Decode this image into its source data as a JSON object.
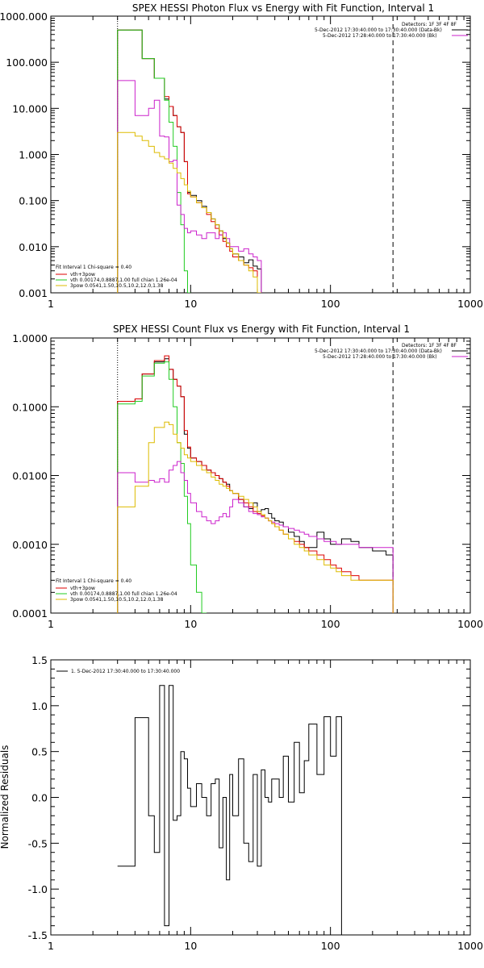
{
  "chart_data": [
    {
      "type": "line",
      "title": "SPEX HESSI Photon Flux vs Energy with Fit Function, Interval 1",
      "xscale": "log",
      "yscale": "log",
      "xlim": [
        1,
        1000
      ],
      "ylim": [
        0.001,
        1000
      ],
      "x_ticks": [
        "1",
        "10",
        "100",
        "1000"
      ],
      "y_ticks": [
        "0.001",
        "0.010",
        "0.100",
        "1.000",
        "10.000",
        "100.000",
        "1000.000"
      ],
      "energy_edges": [
        3.0,
        3.5,
        4.0,
        4.5,
        5.0,
        5.5,
        6.0,
        6.5,
        7.0,
        7.5,
        8.0,
        8.5,
        9.0,
        9.5,
        10.0,
        11.0,
        12.0,
        13.0,
        14.0,
        15.0,
        16.0,
        17.0,
        18.0,
        19.0,
        20.0,
        22.0,
        24.0,
        26.0,
        28.0,
        30.0,
        32.0,
        34.0,
        36.0,
        38.0,
        40.0,
        43.0,
        46.0,
        50.0,
        55.0,
        60.0,
        65.0,
        70.0,
        80.0,
        90.0,
        100.0,
        110.0,
        120.0,
        140.0,
        160.0,
        180.0,
        200.0,
        250.0,
        280.0
      ],
      "vline_dotted_x": 3.0,
      "vline_dashed_x": 280,
      "header": {
        "detectors": "Detectors: 1F 3F 4F 8F",
        "line1": "5-Dec-2012 17:30:40.000 to 17:30:40.000 (Data-Bk)",
        "line2": "5-Dec-2012 17:28:40.000 to 17:30:40.000 (Bk)"
      },
      "legend": {
        "line1": "Fit Interval 1   Chi-square = 0.40",
        "items": [
          "vth+3pow",
          "vth 0.00174,0.8887,1.00  full chian 1.26e-04",
          "3pow 0.0541,1.50,10.5,10.2,12.0,1.38"
        ]
      },
      "series": [
        {
          "key": "data",
          "color": "#000000",
          "values": [
            500,
            500,
            500,
            120,
            120,
            45,
            45,
            16,
            11,
            7,
            4,
            3,
            0.7,
            0.15,
            0.13,
            0.1,
            0.075,
            0.055,
            0.04,
            0.03,
            0.022,
            0.015,
            0.012,
            0.009,
            0.007,
            0.006,
            0.0045,
            0.0052,
            0.0038,
            0.0033
          ]
        },
        {
          "key": "total",
          "color": "#dd0000",
          "values": [
            500,
            500,
            500,
            120,
            120,
            45,
            45,
            18,
            11,
            7,
            4,
            3,
            0.7,
            0.14,
            0.12,
            0.09,
            0.07,
            0.05,
            0.035,
            0.025,
            0.018,
            0.013,
            0.01,
            0.008,
            0.006,
            0.005,
            0.004,
            0.0035,
            0.003
          ]
        },
        {
          "key": "thermal",
          "color": "#22cc22",
          "values": [
            500,
            500,
            500,
            120,
            120,
            45,
            45,
            15,
            5,
            1.5,
            0.15,
            0.03,
            0.003,
            0.001
          ]
        },
        {
          "key": "bk",
          "color": "#cc22cc",
          "values": [
            40,
            40,
            7,
            7,
            10,
            15,
            2.5,
            2.4,
            0.7,
            0.75,
            0.08,
            0.05,
            0.025,
            0.02,
            0.022,
            0.018,
            0.015,
            0.02,
            0.02,
            0.015,
            0.018,
            0.02,
            0.015,
            0.01,
            0.01,
            0.008,
            0.009,
            0.007,
            0.006,
            0.005
          ]
        },
        {
          "key": "nonthermal",
          "color": "#ddbb00",
          "values": [
            3,
            3,
            2.5,
            2,
            1.5,
            1.1,
            0.9,
            0.8,
            0.65,
            0.5,
            0.4,
            0.3,
            0.22,
            0.16,
            0.12,
            0.09,
            0.07,
            0.055,
            0.04,
            0.03,
            0.022,
            0.016,
            0.012,
            0.009,
            0.007,
            0.005,
            0.004,
            0.003,
            0.0022,
            0.001
          ]
        }
      ]
    },
    {
      "type": "line",
      "title": "SPEX HESSI Count Flux vs Energy with Fit Function, Interval 1",
      "xscale": "log",
      "yscale": "log",
      "xlim": [
        1,
        1000
      ],
      "ylim": [
        0.0001,
        1
      ],
      "x_ticks": [
        "1",
        "10",
        "100",
        "1000"
      ],
      "y_ticks": [
        "0.0001",
        "0.0010",
        "0.0100",
        "0.1000",
        "1.0000"
      ],
      "vline_dotted_x": 3.0,
      "vline_dashed_x": 280,
      "header": {
        "detectors": "Detectors: 1F 3F 4F 8F",
        "line1": "5-Dec-2012 17:30:40.000 to 17:30:40.000 (Data-Bk)",
        "line2": "5-Dec-2012 17:28:40.000 to 17:30:40.000 (Bk)"
      },
      "legend": {
        "line1": "Fit Interval 1   Chi-square = 0.40",
        "items": [
          "vth+3pow",
          "vth 0.00174,0.8887,1.00  full chian 1.26e-04",
          "3pow 0.0541,1.50,10.5,10.2,12.0,1.38"
        ]
      },
      "series": [
        {
          "key": "data",
          "color": "#000000",
          "values": [
            0.12,
            0.12,
            0.13,
            0.3,
            0.3,
            0.45,
            0.45,
            0.5,
            0.35,
            0.25,
            0.2,
            0.14,
            0.04,
            0.025,
            0.018,
            0.016,
            0.014,
            0.012,
            0.011,
            0.01,
            0.009,
            0.008,
            0.0075,
            0.006,
            0.0055,
            0.0045,
            0.0035,
            0.0033,
            0.004,
            0.003,
            0.0032,
            0.0033,
            0.0028,
            0.0024,
            0.0022,
            0.0021,
            0.0018,
            0.0015,
            0.0013,
            0.0011,
            0.0009,
            0.0009,
            0.0015,
            0.0012,
            0.001,
            0.001,
            0.0012,
            0.0011,
            0.0009,
            0.0009,
            0.0008,
            0.0007
          ]
        },
        {
          "key": "total",
          "color": "#dd0000",
          "values": [
            0.12,
            0.12,
            0.13,
            0.3,
            0.3,
            0.47,
            0.47,
            0.55,
            0.35,
            0.25,
            0.2,
            0.14,
            0.045,
            0.026,
            0.018,
            0.016,
            0.014,
            0.012,
            0.011,
            0.01,
            0.009,
            0.008,
            0.007,
            0.006,
            0.0055,
            0.0045,
            0.004,
            0.0035,
            0.003,
            0.0028,
            0.0026,
            0.0024,
            0.0022,
            0.002,
            0.0018,
            0.0016,
            0.0014,
            0.0012,
            0.0011,
            0.001,
            0.0009,
            0.0008,
            0.0007,
            0.0006,
            0.0005,
            0.00045,
            0.0004,
            0.00035,
            0.0003,
            0.0003,
            0.0003,
            0.0003
          ]
        },
        {
          "key": "thermal",
          "color": "#22cc22",
          "values": [
            0.11,
            0.11,
            0.12,
            0.28,
            0.28,
            0.43,
            0.43,
            0.45,
            0.25,
            0.1,
            0.03,
            0.015,
            0.005,
            0.002,
            0.0005,
            0.0002,
            0.0001
          ]
        },
        {
          "key": "bk",
          "color": "#cc22cc",
          "values": [
            0.011,
            0.011,
            0.008,
            0.008,
            0.0085,
            0.008,
            0.009,
            0.008,
            0.012,
            0.014,
            0.016,
            0.011,
            0.0085,
            0.0055,
            0.004,
            0.003,
            0.0025,
            0.0022,
            0.002,
            0.0022,
            0.0025,
            0.0028,
            0.0025,
            0.0035,
            0.0045,
            0.004,
            0.0035,
            0.003,
            0.0028,
            0.0027,
            0.0025,
            0.0024,
            0.0022,
            0.0021,
            0.002,
            0.0019,
            0.0018,
            0.0017,
            0.0016,
            0.0015,
            0.0014,
            0.0013,
            0.0012,
            0.0011,
            0.0011,
            0.001,
            0.001,
            0.001,
            0.0009,
            0.0009,
            0.0009,
            0.0009
          ]
        },
        {
          "key": "nonthermal",
          "color": "#ddbb00",
          "values": [
            0.0035,
            0.0035,
            0.007,
            0.007,
            0.03,
            0.05,
            0.05,
            0.06,
            0.055,
            0.04,
            0.03,
            0.025,
            0.02,
            0.018,
            0.016,
            0.014,
            0.012,
            0.011,
            0.0095,
            0.0085,
            0.0075,
            0.007,
            0.0065,
            0.006,
            0.0055,
            0.005,
            0.0045,
            0.004,
            0.0035,
            0.003,
            0.0027,
            0.0024,
            0.0022,
            0.002,
            0.0018,
            0.0016,
            0.0014,
            0.0012,
            0.001,
            0.0009,
            0.0008,
            0.0007,
            0.0006,
            0.0005,
            0.00045,
            0.0004,
            0.00035,
            0.0003,
            0.0003,
            0.0003,
            0.0003,
            0.0003
          ]
        }
      ]
    },
    {
      "type": "line",
      "title": "",
      "ylabel": "Normalized Residuals",
      "xscale": "log",
      "xlim": [
        1,
        1000
      ],
      "ylim": [
        -1.5,
        1.5
      ],
      "x_ticks": [
        "1",
        "10",
        "100",
        "1000"
      ],
      "y_ticks": [
        "-1.5",
        "-1.0",
        "-0.5",
        "0.0",
        "0.5",
        "1.0",
        "1.5"
      ],
      "legend": {
        "items": [
          "1.  5-Dec-2012 17:30:40.000 to 17:30:40.000"
        ]
      },
      "series": [
        {
          "key": "residuals",
          "color": "#000000",
          "values": [
            -0.75,
            -0.75,
            0.87,
            0.87,
            -0.2,
            -0.6,
            1.22,
            -1.4,
            1.22,
            -0.25,
            -0.2,
            0.5,
            0.42,
            0.1,
            -0.1,
            0.15,
            0.0,
            -0.2,
            0.15,
            0.2,
            -0.55,
            0.0,
            -0.9,
            0.25,
            -0.2,
            0.42,
            -0.5,
            -0.7,
            0.25,
            -0.75,
            0.3,
            0.0,
            -0.05,
            0.2,
            0.2,
            0.0,
            0.45,
            -0.05,
            0.6,
            0.05,
            0.4,
            0.8,
            0.25,
            0.88,
            0.45,
            0.88
          ]
        }
      ]
    }
  ]
}
